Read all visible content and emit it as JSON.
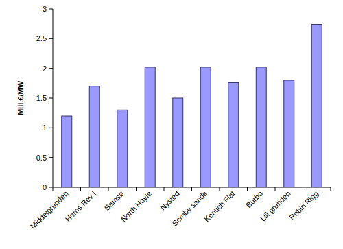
{
  "chart_data": {
    "type": "bar",
    "y_label": "Mill.€/MW",
    "categories": [
      "Middelgrunden",
      "Horns Rev I",
      "Samsø",
      "North Hoyle",
      "Nysted",
      "Scroby sands",
      "Kentich Flat",
      "Burbo",
      "Lill grunden",
      "Robin Rigg"
    ],
    "values": [
      1.2,
      1.7,
      1.3,
      2.02,
      1.5,
      2.02,
      1.76,
      2.02,
      1.8,
      2.74
    ],
    "color": "#9999ff",
    "ylim": [
      0,
      3
    ],
    "yticks": [
      0,
      0.5,
      1,
      1.5,
      2,
      2.5,
      3
    ],
    "grid": false
  }
}
